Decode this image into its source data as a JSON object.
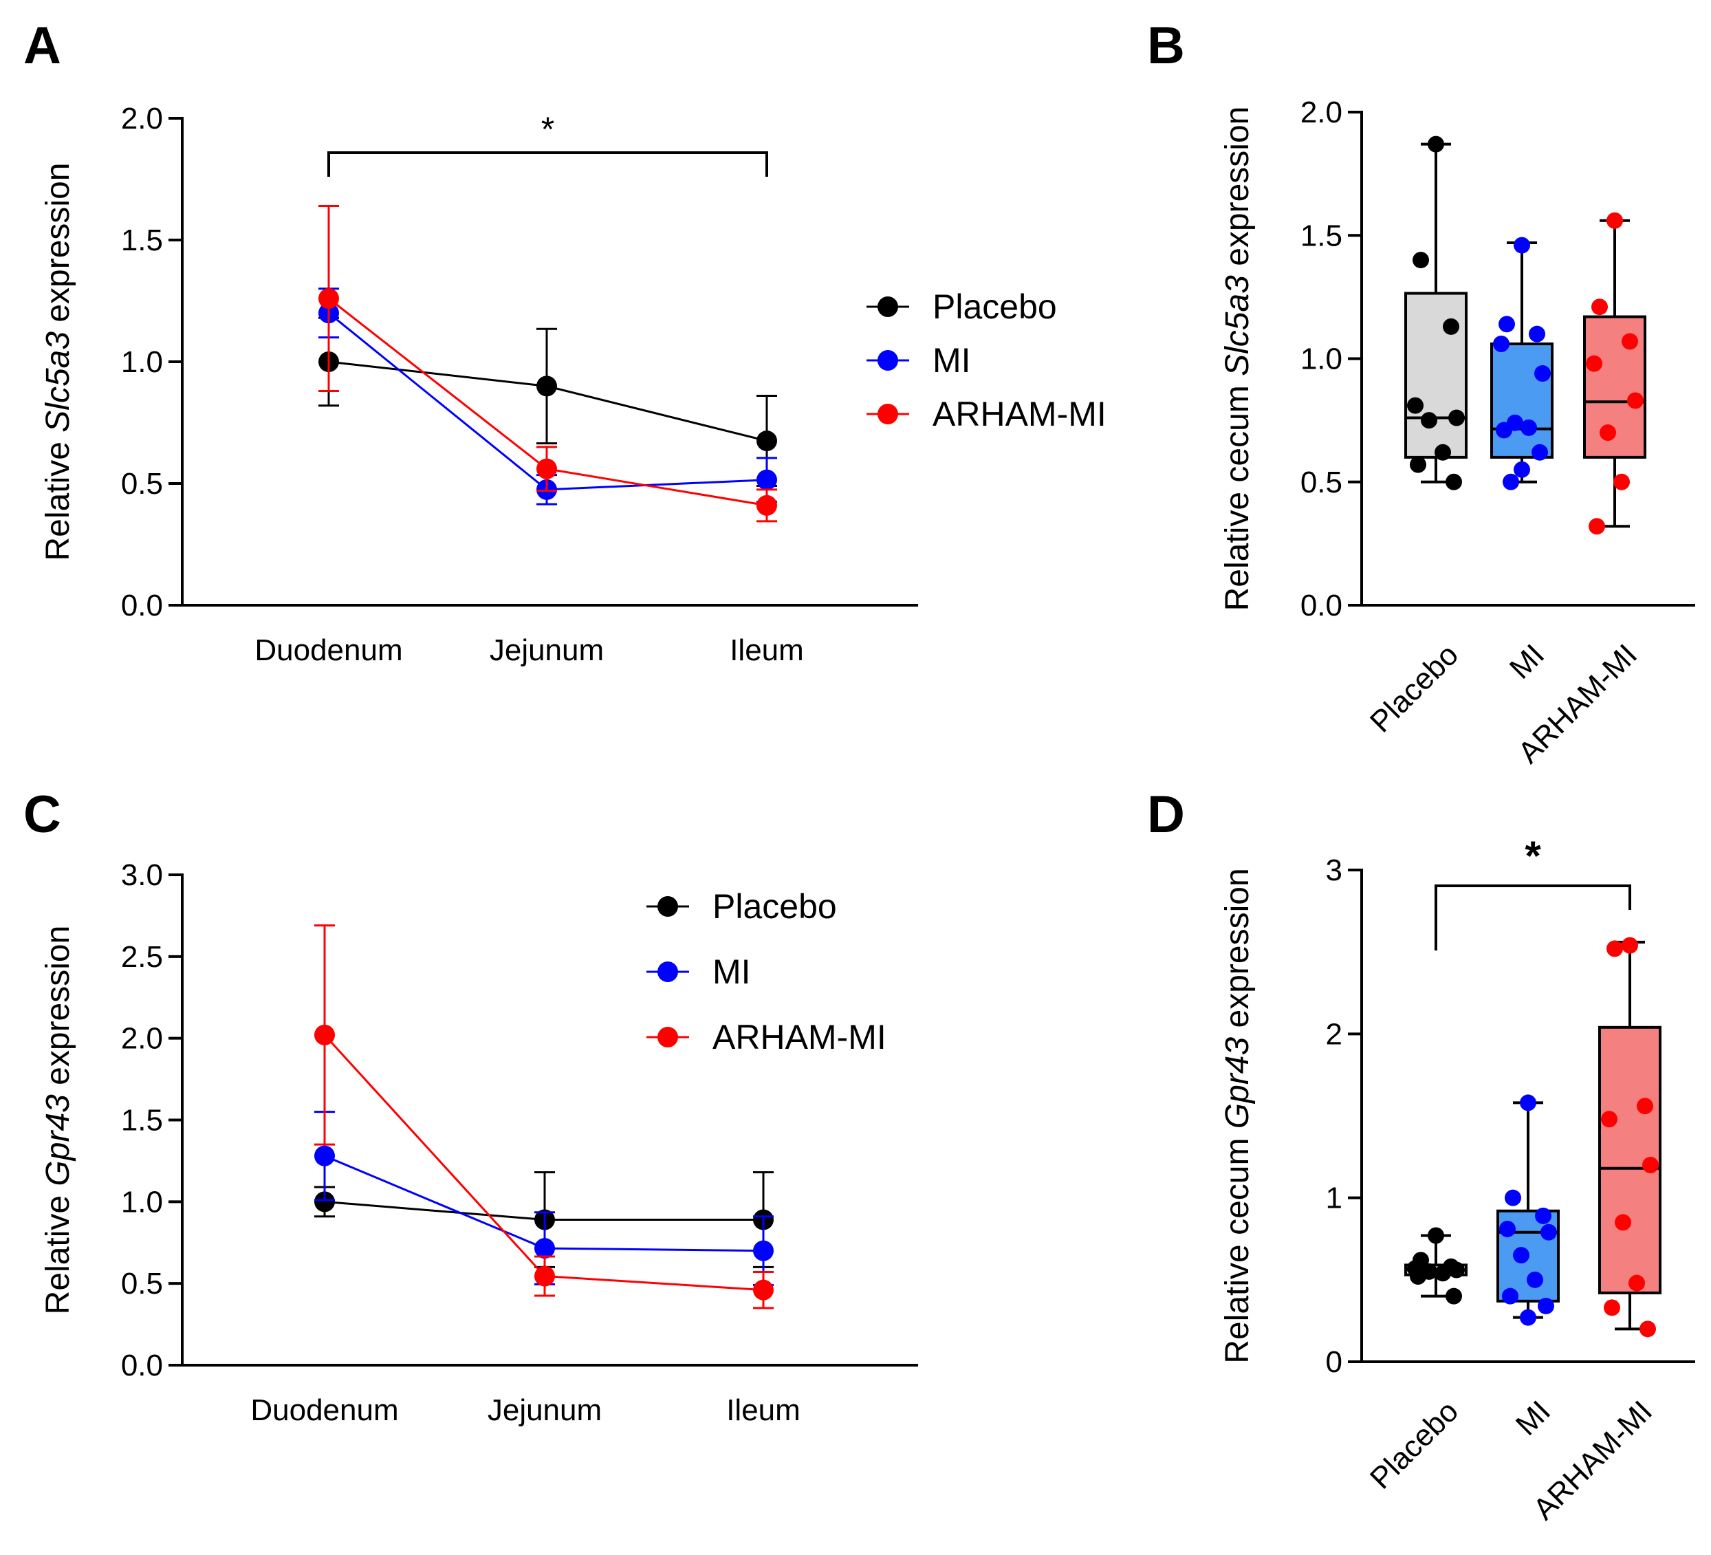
{
  "panels": {
    "A": {
      "letter": "A"
    },
    "B": {
      "letter": "B"
    },
    "C": {
      "letter": "C"
    },
    "D": {
      "letter": "D"
    }
  },
  "chart_data": [
    {
      "id": "A",
      "type": "line",
      "ylabel": {
        "before": "Relative ",
        "gene": "Slc5a3",
        "after": " expression"
      },
      "ylim": [
        0,
        2.0
      ],
      "yticks": [
        "0.0",
        "0.5",
        "1.0",
        "1.5",
        "2.0"
      ],
      "categories": [
        "Duodenum",
        "Jejunum",
        "Ileum"
      ],
      "series": [
        {
          "name": "Placebo",
          "color": "#000000",
          "values": [
            1.0,
            0.9,
            0.675
          ],
          "errors": [
            0.18,
            0.235,
            0.185
          ]
        },
        {
          "name": "MI",
          "color": "#0000ff",
          "values": [
            1.2,
            0.475,
            0.515
          ],
          "errors": [
            0.1,
            0.06,
            0.09
          ]
        },
        {
          "name": "ARHAM-MI",
          "color": "#ff0000",
          "values": [
            1.26,
            0.56,
            0.41
          ],
          "errors": [
            0.38,
            0.09,
            0.065
          ]
        }
      ],
      "significance": {
        "label": "*",
        "from": "Duodenum",
        "to": "Ileum"
      },
      "legend": "right"
    },
    {
      "id": "B",
      "type": "box",
      "ylabel": {
        "before": "Relative cecum ",
        "gene": "Slc5a3",
        "after": " expression"
      },
      "ylim": [
        0,
        2.0
      ],
      "yticks": [
        "0.0",
        "0.5",
        "1.0",
        "1.5",
        "2.0"
      ],
      "categories": [
        "Placebo",
        "MI",
        "ARHAM-MI"
      ],
      "groups": [
        {
          "name": "Placebo",
          "color": "#000000",
          "fill": "#d9d9d9",
          "min": 0.5,
          "q1": 0.6,
          "median": 0.76,
          "q3": 1.265,
          "max": 1.87,
          "points": [
            1.87,
            1.4,
            1.13,
            0.81,
            0.76,
            0.75,
            0.62,
            0.57,
            0.5
          ]
        },
        {
          "name": "MI",
          "color": "#0000ff",
          "fill": "#4c9bf2",
          "min": 0.5,
          "q1": 0.6,
          "median": 0.715,
          "q3": 1.06,
          "max": 1.47,
          "points": [
            1.46,
            1.14,
            1.1,
            1.06,
            0.94,
            0.74,
            0.72,
            0.71,
            0.62,
            0.55,
            0.5
          ]
        },
        {
          "name": "ARHAM-MI",
          "color": "#ff0000",
          "fill": "#f48080",
          "min": 0.32,
          "q1": 0.6,
          "median": 0.825,
          "q3": 1.17,
          "max": 1.56,
          "points": [
            1.56,
            1.21,
            1.07,
            0.98,
            0.83,
            0.7,
            0.5,
            0.32
          ]
        }
      ]
    },
    {
      "id": "C",
      "type": "line",
      "ylabel": {
        "before": "Relative ",
        "gene": "Gpr43",
        "after": " expression"
      },
      "ylim": [
        0,
        3.0
      ],
      "yticks": [
        "0.0",
        "0.5",
        "1.0",
        "1.5",
        "2.0",
        "2.5",
        "3.0"
      ],
      "categories": [
        "Duodenum",
        "Jejunum",
        "Ileum"
      ],
      "series": [
        {
          "name": "Placebo",
          "color": "#000000",
          "values": [
            1.0,
            0.89,
            0.89
          ],
          "errors": [
            0.09,
            0.29,
            0.29
          ]
        },
        {
          "name": "MI",
          "color": "#0000ff",
          "values": [
            1.28,
            0.715,
            0.7
          ],
          "errors": [
            0.27,
            0.22,
            0.21
          ]
        },
        {
          "name": "ARHAM-MI",
          "color": "#ff0000",
          "values": [
            2.02,
            0.545,
            0.46
          ],
          "errors": [
            0.67,
            0.12,
            0.11
          ]
        }
      ],
      "legend": "top-right"
    },
    {
      "id": "D",
      "type": "box",
      "ylabel": {
        "before": "Relative cecum ",
        "gene": "Gpr43",
        "after": " expression"
      },
      "ylim": [
        0,
        3
      ],
      "yticks": [
        "0",
        "1",
        "2",
        "3"
      ],
      "categories": [
        "Placebo",
        "MI",
        "ARHAM-MI"
      ],
      "groups": [
        {
          "name": "Placebo",
          "color": "#000000",
          "fill": "#d9d9d9",
          "min": 0.4,
          "q1": 0.53,
          "median": 0.56,
          "q3": 0.59,
          "max": 0.77,
          "points": [
            0.77,
            0.62,
            0.58,
            0.57,
            0.56,
            0.55,
            0.54,
            0.52,
            0.4
          ]
        },
        {
          "name": "MI",
          "color": "#0000ff",
          "fill": "#4c9bf2",
          "min": 0.27,
          "q1": 0.37,
          "median": 0.79,
          "q3": 0.92,
          "max": 1.58,
          "points": [
            1.58,
            1.0,
            0.89,
            0.81,
            0.79,
            0.65,
            0.5,
            0.4,
            0.34,
            0.27
          ]
        },
        {
          "name": "ARHAM-MI",
          "color": "#ff0000",
          "fill": "#f48080",
          "min": 0.2,
          "q1": 0.42,
          "median": 1.18,
          "q3": 2.04,
          "max": 2.56,
          "points": [
            2.54,
            2.52,
            1.56,
            1.48,
            1.2,
            0.85,
            0.48,
            0.33,
            0.2
          ]
        }
      ],
      "significance": {
        "label": "*",
        "from": "Placebo",
        "to": "ARHAM-MI"
      }
    }
  ]
}
